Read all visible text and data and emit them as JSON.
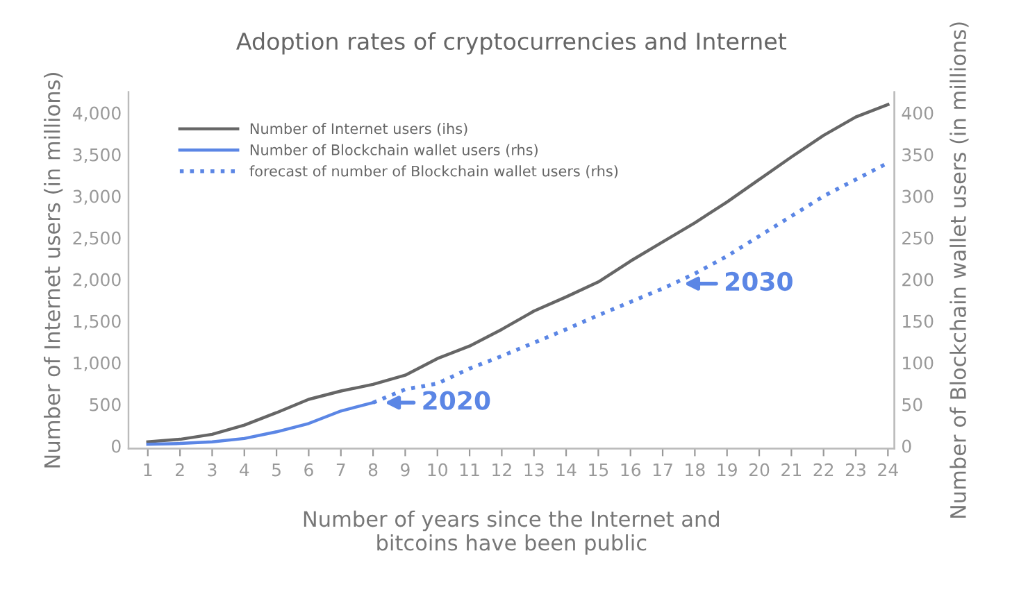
{
  "chart_data": {
    "type": "line",
    "title": "Adoption rates of cryptocurrencies and Internet",
    "xlabel": "Number of years since the Internet and\nbitcoins have been public",
    "ylabel": "Number of Internet users (in millions)",
    "y2label": "Number of Blockchain wallet users (in millions)",
    "x": [
      1,
      2,
      3,
      4,
      5,
      6,
      7,
      8,
      9,
      10,
      11,
      12,
      13,
      14,
      15,
      16,
      17,
      18,
      19,
      20,
      21,
      22,
      23,
      24
    ],
    "series": [
      {
        "name": "Number of Internet users (ihs)",
        "color": "#666666",
        "line_style": "solid",
        "values": [
          50,
          80,
          140,
          250,
          400,
          560,
          660,
          740,
          850,
          1050,
          1200,
          1400,
          1620,
          1790,
          1970,
          2220,
          2450,
          2680,
          2930,
          3200,
          3470,
          3730,
          3950,
          4100
        ]
      },
      {
        "name": "Number of Blockchain wallet users (rhs)",
        "color": "#5b86e5",
        "line_style": "solid",
        "axis": "y2",
        "x": [
          1,
          2,
          3,
          4,
          5,
          6,
          7,
          8
        ],
        "values": [
          2,
          3,
          5,
          9,
          17,
          27,
          42,
          52
        ]
      },
      {
        "name": "forecast of number of Blockchain wallet users (rhs)",
        "color": "#5b86e5",
        "line_style": "dotted",
        "axis": "y2",
        "x": [
          8,
          9,
          10,
          11,
          12,
          13,
          14,
          15,
          16,
          17,
          18,
          19,
          20,
          21,
          22,
          23,
          24
        ],
        "values": [
          52,
          68,
          75,
          93,
          108,
          124,
          140,
          157,
          173,
          189,
          207,
          228,
          252,
          276,
          300,
          320,
          340
        ]
      }
    ],
    "xlim": [
      0.4,
      24.2
    ],
    "xticks": [
      1,
      2,
      3,
      4,
      5,
      6,
      7,
      8,
      9,
      10,
      11,
      12,
      13,
      14,
      15,
      16,
      17,
      18,
      19,
      20,
      21,
      22,
      23,
      24
    ],
    "ylim": [
      -30,
      4250
    ],
    "yticks": [
      0,
      500,
      {
        "value": 1000,
        "label": "1,000"
      },
      {
        "value": 1500,
        "label": "1,500"
      },
      {
        "value": 2000,
        "label": "2,000"
      },
      {
        "value": 2500,
        "label": "2,500"
      },
      {
        "value": 3000,
        "label": "3,000"
      },
      {
        "value": 3500,
        "label": "3,500"
      },
      {
        "value": 4000,
        "label": "4,000"
      }
    ],
    "y2lim": [
      -3,
      425
    ],
    "y2ticks": [
      0,
      50,
      100,
      150,
      200,
      250,
      300,
      350,
      400
    ],
    "annotations": [
      {
        "text": "2020",
        "x": 8,
        "y": 520
      },
      {
        "text": "2030",
        "x": 17.3,
        "y": 1950
      }
    ],
    "legend": "top left",
    "grid": false,
    "marker": "none"
  }
}
